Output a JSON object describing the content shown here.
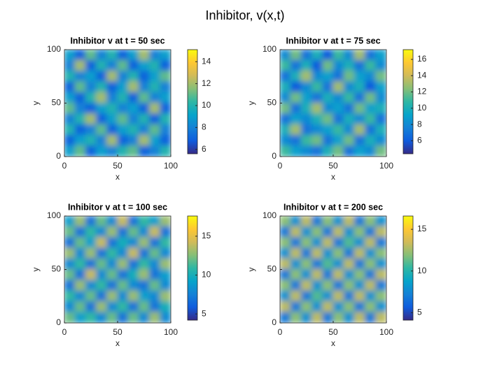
{
  "title": "Inhibitor, v(x,t)",
  "colormap": [
    "#352a87",
    "#0f5cdd",
    "#1481d6",
    "#06a4ca",
    "#2eb7a4",
    "#87bf77",
    "#d1bb59",
    "#fec832",
    "#f9fb0e"
  ],
  "chart_data": [
    {
      "type": "heatmap",
      "title": "Inhibitor v at t = 50 sec",
      "x_label": "x",
      "y_label": "y",
      "xlim": [
        0,
        100
      ],
      "ylim": [
        0,
        100
      ],
      "xticks": [
        0,
        50,
        100
      ],
      "yticks": [
        0,
        50,
        100
      ],
      "clim": [
        5.6,
        15.1
      ],
      "cticks": [
        6,
        8,
        10,
        12,
        14
      ],
      "z": [
        [
          9,
          7,
          11,
          8,
          10,
          7,
          9,
          12,
          8,
          9
        ],
        [
          8,
          12,
          7,
          10,
          8,
          11,
          7,
          9,
          10,
          7
        ],
        [
          10,
          8,
          9,
          7,
          12,
          8,
          10,
          7,
          9,
          11
        ],
        [
          7,
          11,
          8,
          10,
          7,
          9,
          12,
          8,
          10,
          8
        ],
        [
          9,
          7,
          10,
          12,
          8,
          10,
          7,
          11,
          8,
          9
        ],
        [
          11,
          8,
          7,
          9,
          10,
          8,
          9,
          7,
          12,
          7
        ],
        [
          8,
          10,
          12,
          7,
          9,
          11,
          8,
          10,
          7,
          10
        ],
        [
          10,
          7,
          8,
          11,
          7,
          9,
          10,
          8,
          11,
          8
        ],
        [
          7,
          9,
          10,
          8,
          12,
          7,
          8,
          12,
          9,
          7
        ],
        [
          9,
          11,
          7,
          9,
          8,
          10,
          11,
          7,
          8,
          10
        ]
      ]
    },
    {
      "type": "heatmap",
      "title": "Inhibitor v at t = 75 sec",
      "x_label": "x",
      "y_label": "y",
      "xlim": [
        0,
        100
      ],
      "ylim": [
        0,
        100
      ],
      "xticks": [
        0,
        50,
        100
      ],
      "yticks": [
        0,
        50,
        100
      ],
      "clim": [
        4.4,
        17.2
      ],
      "cticks": [
        6,
        8,
        10,
        12,
        14,
        16
      ],
      "z": [
        [
          8,
          12,
          7,
          10,
          6,
          11,
          8,
          13,
          7,
          9
        ],
        [
          11,
          7,
          10,
          6,
          12,
          8,
          10,
          7,
          11,
          8
        ],
        [
          7,
          10,
          13,
          8,
          9,
          7,
          12,
          9,
          8,
          12
        ],
        [
          10,
          6,
          8,
          11,
          7,
          13,
          8,
          10,
          6,
          9
        ],
        [
          8,
          12,
          9,
          7,
          10,
          8,
          11,
          7,
          12,
          8
        ],
        [
          12,
          7,
          10,
          13,
          8,
          9,
          7,
          12,
          9,
          10
        ],
        [
          7,
          9,
          8,
          10,
          12,
          7,
          10,
          8,
          11,
          7
        ],
        [
          10,
          13,
          7,
          8,
          9,
          11,
          8,
          13,
          7,
          10
        ],
        [
          8,
          7,
          11,
          12,
          7,
          9,
          12,
          7,
          10,
          8
        ],
        [
          11,
          9,
          8,
          7,
          10,
          12,
          7,
          9,
          8,
          12
        ]
      ]
    },
    {
      "type": "heatmap",
      "title": "Inhibitor v at t = 100 sec",
      "x_label": "x",
      "y_label": "y",
      "xlim": [
        0,
        100
      ],
      "ylim": [
        0,
        100
      ],
      "xticks": [
        0,
        50,
        100
      ],
      "yticks": [
        0,
        50,
        100
      ],
      "clim": [
        4.2,
        17.6
      ],
      "cticks": [
        5,
        10,
        15
      ],
      "z": [
        [
          9,
          13,
          7,
          12,
          8,
          14,
          7,
          11,
          9,
          13
        ],
        [
          12,
          7,
          11,
          8,
          13,
          7,
          12,
          8,
          14,
          7
        ],
        [
          7,
          12,
          9,
          14,
          7,
          10,
          8,
          13,
          7,
          11
        ],
        [
          13,
          8,
          13,
          7,
          11,
          8,
          14,
          7,
          12,
          8
        ],
        [
          8,
          11,
          7,
          12,
          8,
          13,
          7,
          11,
          8,
          13
        ],
        [
          12,
          7,
          14,
          8,
          12,
          7,
          10,
          13,
          7,
          9
        ],
        [
          7,
          13,
          8,
          11,
          7,
          12,
          8,
          7,
          12,
          8
        ],
        [
          11,
          8,
          12,
          7,
          13,
          8,
          13,
          9,
          8,
          13
        ],
        [
          8,
          12,
          7,
          13,
          8,
          11,
          7,
          12,
          7,
          10
        ],
        [
          12,
          9,
          11,
          8,
          12,
          7,
          12,
          8,
          13,
          8
        ]
      ]
    },
    {
      "type": "heatmap",
      "title": "Inhibitor v at t = 200 sec",
      "x_label": "x",
      "y_label": "y",
      "xlim": [
        0,
        100
      ],
      "ylim": [
        0,
        100
      ],
      "xticks": [
        0,
        50,
        100
      ],
      "yticks": [
        0,
        50,
        100
      ],
      "clim": [
        4.1,
        16.6
      ],
      "cticks": [
        5,
        10,
        15
      ],
      "z": [
        [
          12,
          8,
          13,
          7,
          12,
          8,
          13,
          7,
          12,
          8
        ],
        [
          7,
          13,
          8,
          12,
          7,
          13,
          8,
          12,
          7,
          13
        ],
        [
          12,
          7,
          12,
          8,
          13,
          7,
          11,
          8,
          13,
          7
        ],
        [
          8,
          13,
          7,
          13,
          8,
          12,
          7,
          13,
          8,
          12
        ],
        [
          13,
          8,
          12,
          7,
          11,
          8,
          13,
          7,
          12,
          8
        ],
        [
          7,
          12,
          8,
          13,
          7,
          13,
          8,
          12,
          7,
          13
        ],
        [
          12,
          7,
          13,
          8,
          12,
          7,
          12,
          8,
          13,
          7
        ],
        [
          8,
          13,
          7,
          11,
          8,
          13,
          7,
          13,
          8,
          12
        ],
        [
          13,
          7,
          12,
          8,
          13,
          8,
          12,
          7,
          12,
          8
        ],
        [
          7,
          12,
          8,
          13,
          7,
          12,
          8,
          13,
          7,
          13
        ]
      ]
    }
  ]
}
